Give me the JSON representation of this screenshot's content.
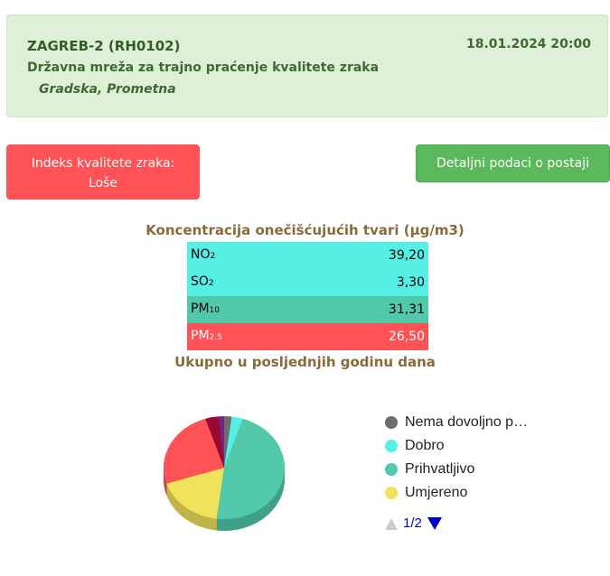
{
  "station": {
    "title": "ZAGREB-2 (RH0102)",
    "network": "Državna mreža za trajno praćenje kvalitete zraka",
    "type": "Gradska, Prometna",
    "datetime": "18.01.2024 20:00"
  },
  "aqi_button": {
    "label": "Indeks kvalitete zraka:",
    "value": "Loše",
    "color": "#ff5257"
  },
  "details_button": {
    "label": "Detaljni podaci o postaji"
  },
  "concentration": {
    "title": "Koncentracija onečišćujućih tvari (µg/m3)",
    "rows": [
      {
        "name": "NO",
        "sub": "2",
        "value": "39,20",
        "color": "#55efe6",
        "text": "#000"
      },
      {
        "name": "SO",
        "sub": "2",
        "value": "3,30",
        "color": "#55efe6",
        "text": "#000"
      },
      {
        "name": "PM",
        "sub": "10",
        "value": "31,31",
        "color": "#52c9ab",
        "text": "#000"
      },
      {
        "name": "PM",
        "sub": "2.5",
        "value": "26,50",
        "color": "#ff5257",
        "text": "#fff"
      }
    ]
  },
  "summary_title": "Ukupno u posljednjih godinu dana",
  "chart_data": {
    "type": "pie",
    "three_d": true,
    "legend_position": "right",
    "series": [
      {
        "name": "Nema dovoljno p…",
        "value": 2,
        "color": "#6d6d6d"
      },
      {
        "name": "Dobro",
        "value": 3,
        "color": "#55efe6"
      },
      {
        "name": "Prihvatljivo",
        "value": 47,
        "color": "#52c9ab"
      },
      {
        "name": "Umjereno",
        "value": 18,
        "color": "#efe35a"
      },
      {
        "value": 25,
        "color": "#ff5257"
      },
      {
        "value": 3.5,
        "color": "#960a32"
      },
      {
        "value": 1.5,
        "color": "#7d2181"
      }
    ]
  },
  "legend_pager": {
    "label": "1/2",
    "up_icon": "triangle-up-icon",
    "down_icon": "triangle-down-icon"
  }
}
